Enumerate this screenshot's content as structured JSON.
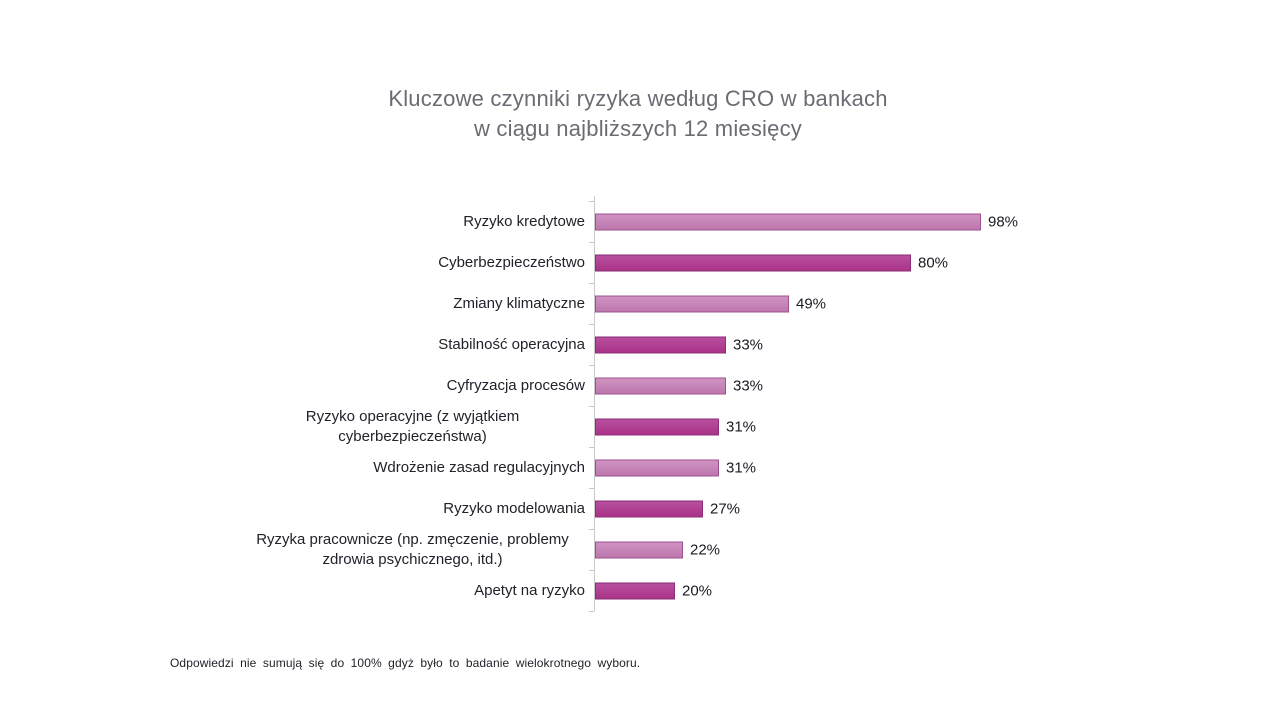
{
  "title": {
    "line1": "Kluczowe czynniki ryzyka według CRO w bankach",
    "line2": "w ciągu najbliższych 12 miesięcy"
  },
  "footnote": "Odpowiedzi nie sumują się do 100% gdyż było to badanie wielokrotnego wyboru.",
  "colors": {
    "bar_light_fill": "#c583b5",
    "bar_light_border": "#9d5090",
    "bar_dark_fill": "#af3d92",
    "bar_dark_border": "#8c2e74",
    "title_text": "#6b6b74",
    "label_text": "#21212b",
    "axis": "#c9c9c9"
  },
  "chart_data": {
    "type": "bar",
    "orientation": "horizontal",
    "title": "Kluczowe czynniki ryzyka według CRO w bankach w ciągu najbliższych 12 miesięcy",
    "xlabel": "",
    "ylabel": "",
    "xlim": [
      0,
      100
    ],
    "grid": false,
    "legend": false,
    "categories": [
      "Ryzyko kredytowe",
      "Cyberbezpieczeństwo",
      "Zmiany klimatyczne",
      "Stabilność operacyjna",
      "Cyfryzacja procesów",
      "Ryzyko operacyjne (z wyjątkiem cyberbezpieczeństwa)",
      "Wdrożenie zasad regulacyjnych",
      "Ryzyko modelowania",
      "Ryzyka pracownicze (np. zmęczenie, problemy zdrowia psychicznego, itd.)",
      "Apetyt na ryzyko"
    ],
    "values": [
      98,
      80,
      49,
      33,
      33,
      31,
      31,
      27,
      22,
      20
    ],
    "value_labels": [
      "98%",
      "80%",
      "49%",
      "33%",
      "33%",
      "31%",
      "31%",
      "27%",
      "22%",
      "20%"
    ],
    "bar_shades": [
      "light",
      "dark",
      "light",
      "dark",
      "light",
      "dark",
      "light",
      "dark",
      "light",
      "dark"
    ]
  }
}
